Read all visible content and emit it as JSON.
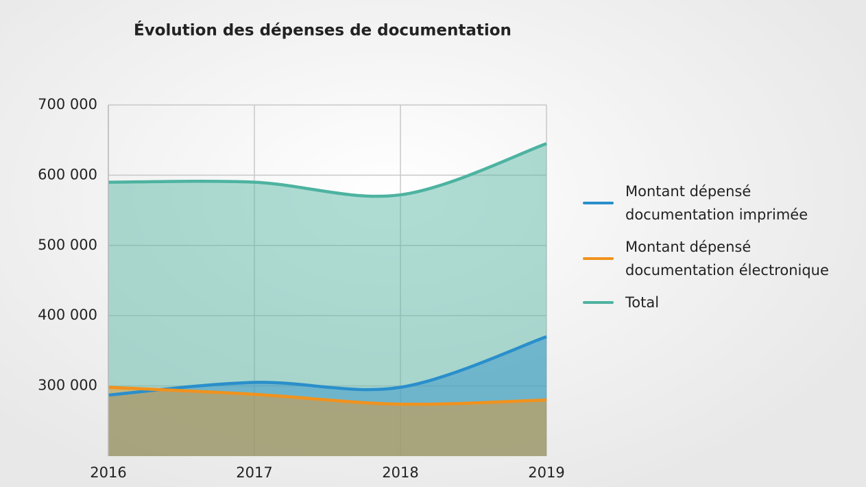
{
  "chart_data": {
    "type": "area",
    "title": "Évolution des dépenses de documentation",
    "categories": [
      "2016",
      "2017",
      "2018",
      "2019"
    ],
    "series": [
      {
        "name": "Total",
        "color": "#4db3a0",
        "values": [
          590000,
          590000,
          572000,
          645000
        ]
      },
      {
        "name": "Montant dépensé documentation imprimée",
        "color": "#2a8fcb",
        "values": [
          287000,
          305000,
          298000,
          370000
        ]
      },
      {
        "name": "Montant dépensé documentation électronique",
        "color": "#f0921e",
        "values": [
          298000,
          288000,
          274000,
          280000
        ]
      }
    ],
    "ylim": [
      200000,
      700000
    ],
    "yticks": [
      {
        "value": 300000,
        "label": "300 000"
      },
      {
        "value": 400000,
        "label": "400 000"
      },
      {
        "value": 500000,
        "label": "500 000"
      },
      {
        "value": 600000,
        "label": "600 000"
      },
      {
        "value": 700000,
        "label": "700 000"
      }
    ],
    "grid": true,
    "legend": "right"
  }
}
